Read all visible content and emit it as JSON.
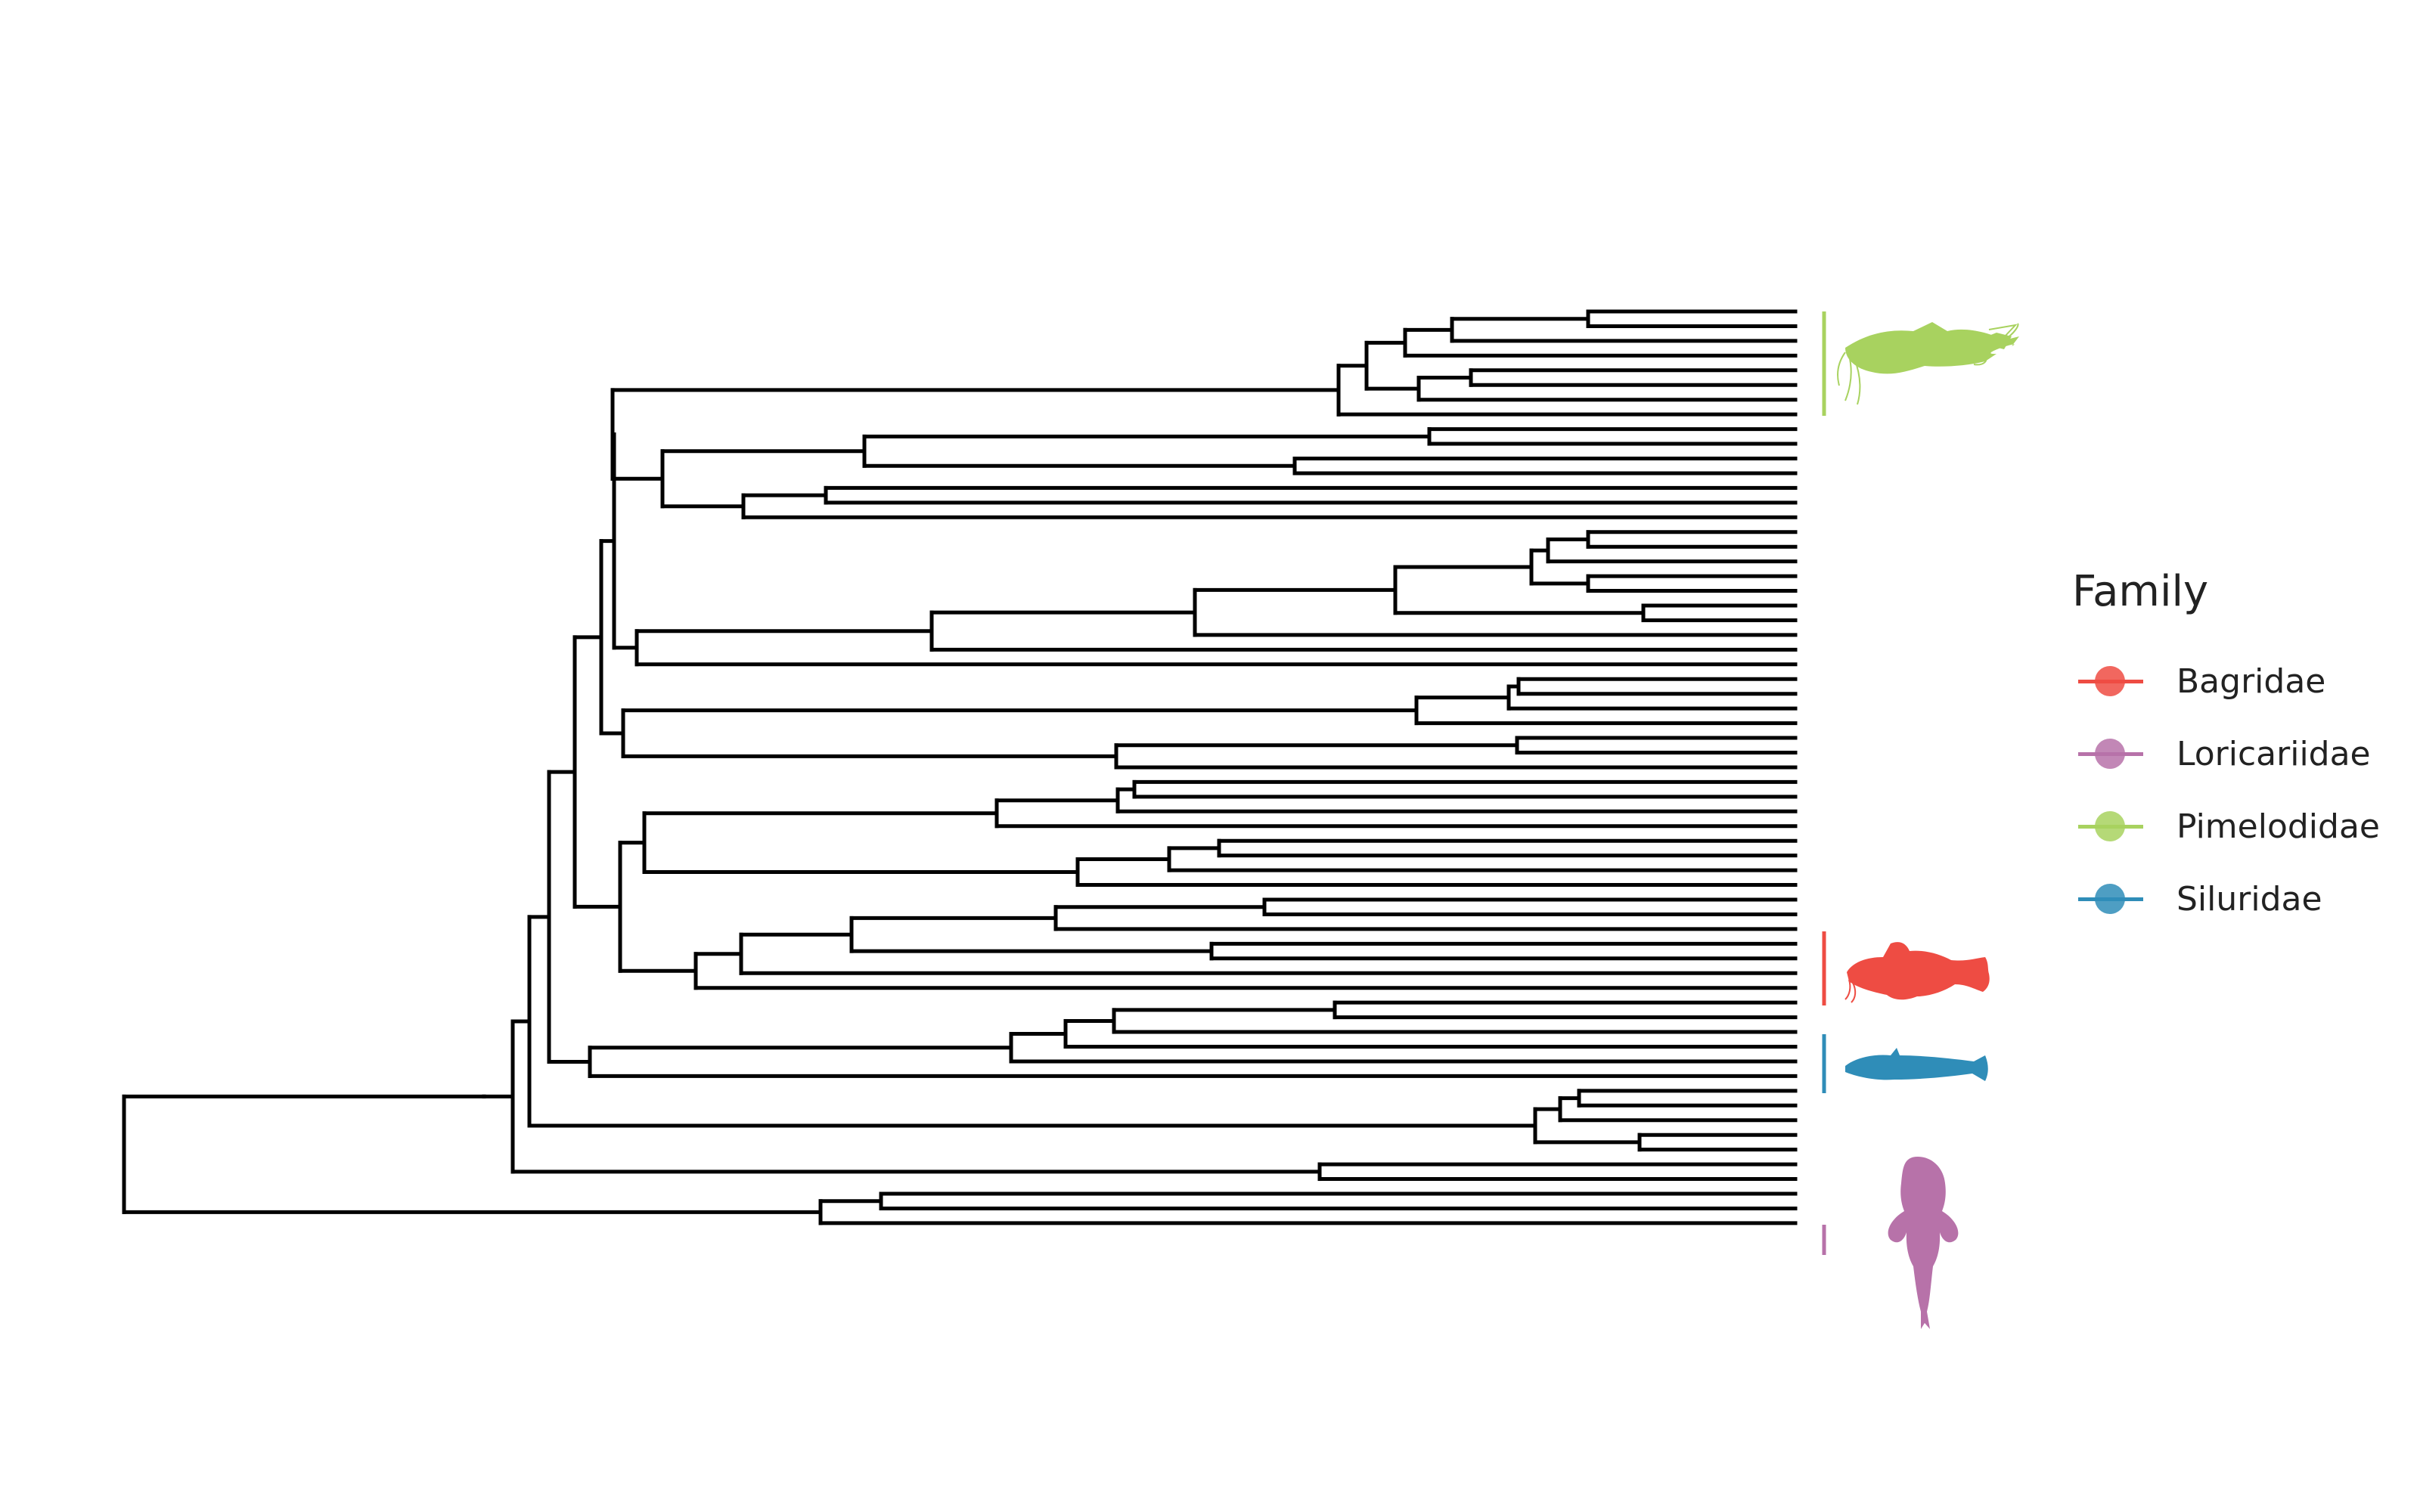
{
  "legend": {
    "title": "Family",
    "items": [
      {
        "label": "Bagridae",
        "color": "#EE4C43"
      },
      {
        "label": "Loricariidae",
        "color": "#B772A9"
      },
      {
        "label": "Pimelodidae",
        "color": "#A8D25F"
      },
      {
        "label": "Siluridae",
        "color": "#2F8DB8"
      }
    ]
  },
  "clades": [
    {
      "family": "Pimelodidae",
      "silhouette": "catfish-long-barbels-icon"
    },
    {
      "family": "Bagridae",
      "silhouette": "catfish-icon"
    },
    {
      "family": "Siluridae",
      "silhouette": "eel-catfish-icon"
    },
    {
      "family": "Loricariidae",
      "silhouette": "armored-catfish-icon"
    }
  ]
}
